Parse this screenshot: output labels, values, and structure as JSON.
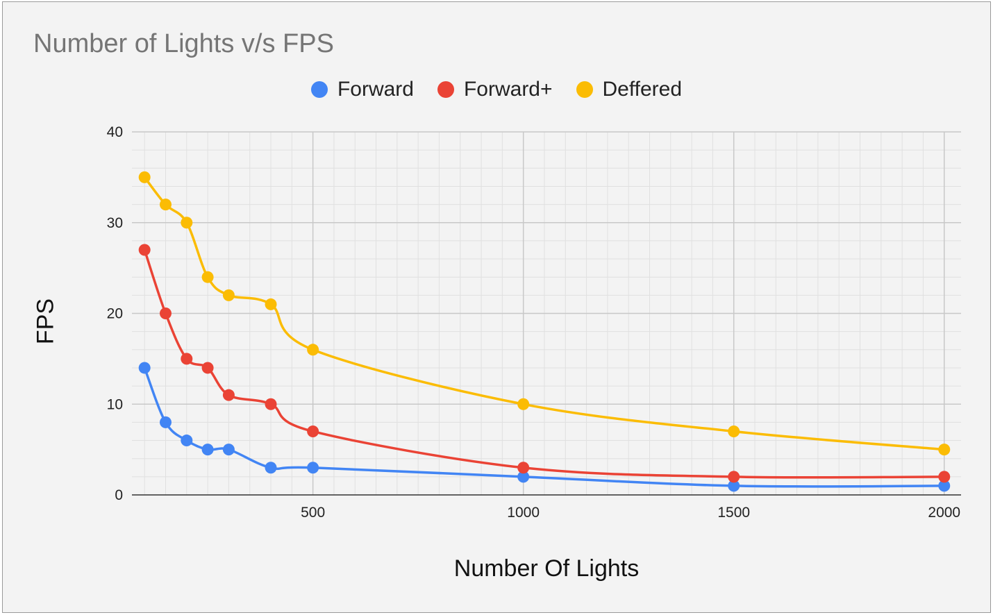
{
  "chart_data": {
    "type": "line",
    "title": "Number of Lights v/s FPS",
    "xlabel": "Number Of Lights",
    "ylabel": "FPS",
    "xlim": [
      70,
      2040
    ],
    "ylim": [
      0,
      40
    ],
    "x_ticks": [
      "500",
      "1000",
      "1500",
      "2000"
    ],
    "y_ticks": [
      "0",
      "10",
      "20",
      "30",
      "40"
    ],
    "grid": true,
    "legend": "top-center",
    "x": [
      100,
      150,
      200,
      250,
      300,
      400,
      500,
      1000,
      1500,
      2000
    ],
    "series": [
      {
        "name": "Forward",
        "color": "#4285f4",
        "values": [
          14,
          8,
          6,
          5,
          5,
          3,
          3,
          2,
          1,
          1
        ]
      },
      {
        "name": "Forward+",
        "color": "#ea4335",
        "values": [
          27,
          20,
          15,
          14,
          11,
          10,
          7,
          3,
          2,
          2
        ]
      },
      {
        "name": "Deffered",
        "color": "#fbbc04",
        "values": [
          35,
          32,
          30,
          24,
          22,
          21,
          16,
          10,
          7,
          5
        ]
      }
    ]
  }
}
